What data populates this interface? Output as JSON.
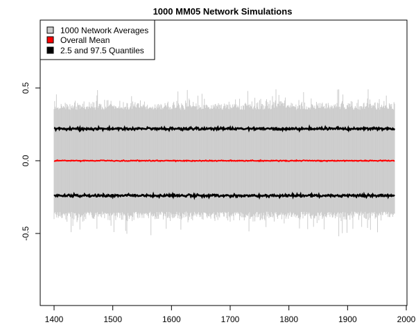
{
  "chart_data": {
    "type": "line",
    "title": "1000 MM05 Network Simulations",
    "xlabel": "",
    "ylabel": "",
    "xlim": [
      1400,
      2000
    ],
    "ylim": [
      -0.95,
      0.95
    ],
    "x_range": [
      1400,
      1980
    ],
    "x_ticks": [
      "1400",
      "1500",
      "1600",
      "1700",
      "1800",
      "1900",
      "2000"
    ],
    "y_ticks": [
      "-0.5",
      "0.0",
      "0.5"
    ],
    "grid": false,
    "legend_position": "top-left",
    "series": [
      {
        "name": "1000 Network Averages",
        "color": "#cccccc",
        "typical_range": [
          -0.35,
          0.35
        ],
        "extremes": [
          -0.52,
          0.5
        ]
      },
      {
        "name": "Overall Mean",
        "color": "#ff0000",
        "level": 0.0
      },
      {
        "name": "2.5 and 97.5 Quantiles",
        "color": "#000000",
        "levels": [
          -0.24,
          0.22
        ]
      }
    ]
  }
}
